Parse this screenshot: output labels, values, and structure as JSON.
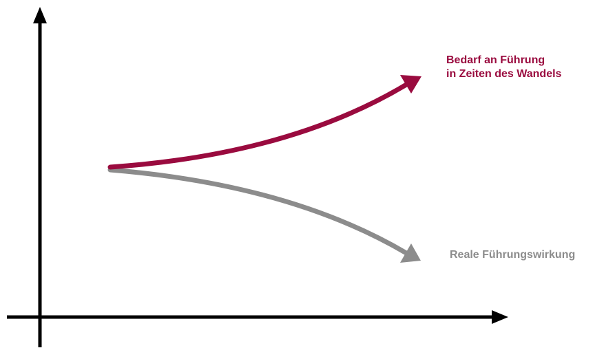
{
  "colors": {
    "background": "#ffffff",
    "axis": "#000000",
    "demand": "#9a0b3f",
    "effect": "#8c8c8c"
  },
  "series": {
    "demand": {
      "label_line1": "Bedarf an Führung",
      "label_line2": "in Zeiten des Wandels",
      "trend": "increasing"
    },
    "effect": {
      "label": "Reale Führungswirkung",
      "trend": "decreasing"
    }
  }
}
